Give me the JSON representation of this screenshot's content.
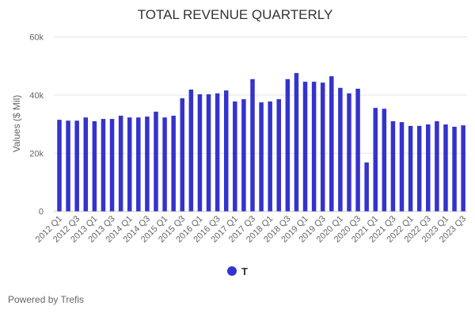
{
  "chart_data": {
    "type": "bar",
    "title": "TOTAL REVENUE QUARTERLY",
    "xlabel": "",
    "ylabel": "Values ($ Mil)",
    "ylim": [
      0,
      60000
    ],
    "yticks": [
      0,
      20000,
      40000,
      60000
    ],
    "ytick_labels": [
      "0",
      "20k",
      "40k",
      "60k"
    ],
    "grid": true,
    "legend_position": "bottom",
    "color": "#3533cd",
    "categories": [
      "2012 Q1",
      "2012 Q2",
      "2012 Q3",
      "2012 Q4",
      "2013 Q1",
      "2013 Q2",
      "2013 Q3",
      "2013 Q4",
      "2014 Q1",
      "2014 Q2",
      "2014 Q3",
      "2014 Q4",
      "2015 Q1",
      "2015 Q2",
      "2015 Q3",
      "2015 Q4",
      "2016 Q1",
      "2016 Q2",
      "2016 Q3",
      "2016 Q4",
      "2017 Q1",
      "2017 Q2",
      "2017 Q3",
      "2017 Q4",
      "2018 Q1",
      "2018 Q2",
      "2018 Q3",
      "2018 Q4",
      "2019 Q1",
      "2019 Q2",
      "2019 Q3",
      "2019 Q4",
      "2020 Q1",
      "2020 Q2",
      "2020 Q3",
      "2020 Q4",
      "2021 Q1",
      "2021 Q2",
      "2021 Q3",
      "2021 Q4",
      "2022 Q1",
      "2022 Q2",
      "2022 Q3",
      "2022 Q4",
      "2023 Q1",
      "2023 Q2",
      "2023 Q3"
    ],
    "series": [
      {
        "name": "T",
        "values": [
          31500,
          31200,
          31200,
          32300,
          31000,
          31800,
          31800,
          32900,
          32300,
          32300,
          32600,
          34300,
          32300,
          32900,
          38900,
          41900,
          40300,
          40300,
          40600,
          41600,
          37800,
          38600,
          45500,
          37500,
          37800,
          38600,
          45500,
          47600,
          44600,
          44600,
          44300,
          46500,
          42500,
          40600,
          42200,
          16800,
          35600,
          35300,
          31000,
          30700,
          29400,
          29400,
          29900,
          31000,
          29900,
          29100,
          29600
        ]
      }
    ]
  },
  "footer": {
    "credit": "Powered by Trefis"
  }
}
